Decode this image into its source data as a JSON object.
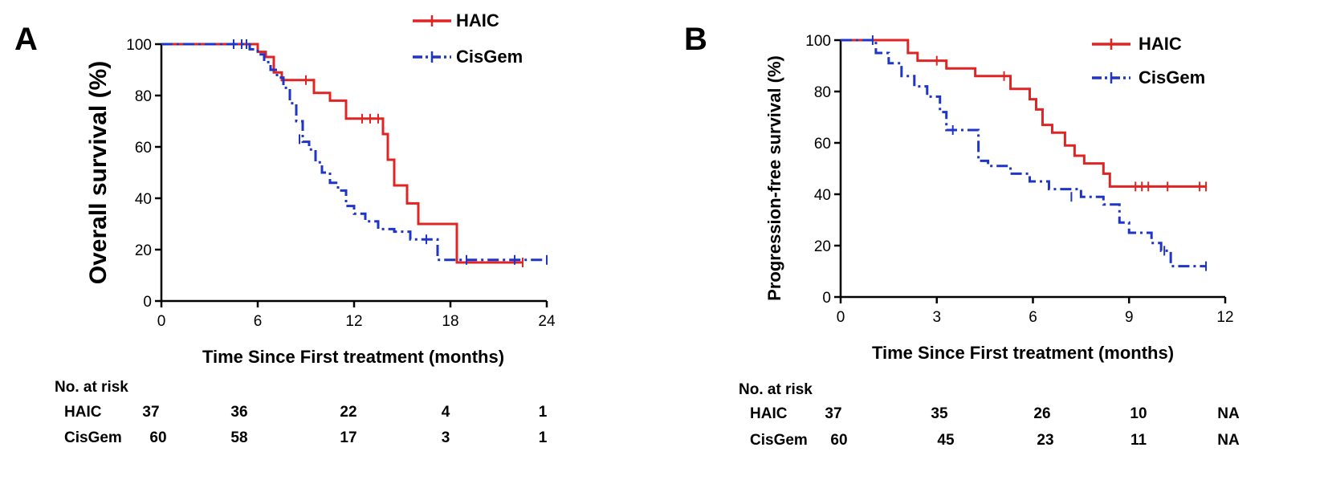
{
  "chart_data": [
    {
      "panel_label": "A",
      "type": "line",
      "subtype": "kaplan-meier",
      "title": "",
      "xlabel": "Time Since First treatment (months)",
      "ylabel": "Overall survival (%)",
      "xlim": [
        0,
        24
      ],
      "ylim": [
        0,
        100
      ],
      "xticks": [
        0,
        6,
        12,
        18,
        24
      ],
      "yticks": [
        0,
        20,
        40,
        60,
        80,
        100
      ],
      "legend_position": "top-right",
      "series": [
        {
          "name": "HAIC",
          "color": "#e02424",
          "line_style": "solid",
          "x": [
            0,
            6,
            6.5,
            7,
            7.5,
            9.5,
            10.5,
            11.5,
            13.8,
            14.1,
            14.5,
            15.3,
            16,
            18.4,
            22.5
          ],
          "y": [
            100,
            97,
            95,
            89,
            86,
            81,
            78,
            71,
            65,
            55,
            45,
            38,
            30,
            15,
            15
          ],
          "censor_x": [
            9,
            12.5,
            13,
            13.5,
            22.5
          ],
          "censor_y": [
            86,
            71,
            71,
            71,
            15
          ]
        },
        {
          "name": "CisGem",
          "color": "#1f35c8",
          "line_style": "dashdot",
          "x": [
            0,
            5.5,
            6,
            6.4,
            6.8,
            7.2,
            7.6,
            8,
            8.4,
            8.8,
            9.2,
            9.6,
            10,
            10.5,
            11,
            11.5,
            12,
            12.7,
            13.5,
            14.5,
            15.5,
            17.2,
            24
          ],
          "y": [
            100,
            98,
            96,
            93,
            90,
            87,
            83,
            77,
            70,
            62,
            59,
            54,
            50,
            46,
            43,
            37,
            34,
            31,
            28,
            27,
            24,
            16,
            16
          ],
          "censor_x": [
            4.5,
            5,
            5.3,
            8.6,
            16.5,
            19,
            22,
            24
          ],
          "censor_y": [
            100,
            100,
            100,
            63,
            24,
            16,
            16,
            16
          ]
        }
      ],
      "risk_table": {
        "title": "No. at risk",
        "rows": [
          {
            "label": "HAIC",
            "values": [
              "37",
              "36",
              "22",
              "4",
              "1"
            ]
          },
          {
            "label": "CisGem",
            "values": [
              "60",
              "58",
              "17",
              "3",
              "1"
            ]
          }
        ]
      }
    },
    {
      "panel_label": "B",
      "type": "line",
      "subtype": "kaplan-meier",
      "title": "",
      "xlabel": "Time Since First treatment (months)",
      "ylabel": "Progression-free survival (%)",
      "xlim": [
        0,
        12
      ],
      "ylim": [
        0,
        100
      ],
      "xticks": [
        0,
        3,
        6,
        9,
        12
      ],
      "yticks": [
        0,
        20,
        40,
        60,
        80,
        100
      ],
      "legend_position": "top-right",
      "series": [
        {
          "name": "HAIC",
          "color": "#e02424",
          "line_style": "solid",
          "x": [
            0,
            2.1,
            2.4,
            3.3,
            4.2,
            5.3,
            5.9,
            6.1,
            6.3,
            6.6,
            7,
            7.3,
            7.6,
            8.2,
            8.4,
            11.4
          ],
          "y": [
            100,
            95,
            92,
            89,
            86,
            81,
            77,
            73,
            67,
            64,
            59,
            55,
            52,
            48,
            43,
            43
          ],
          "censor_x": [
            3,
            5.1,
            9.2,
            9.4,
            9.6,
            10.2,
            11.2,
            11.4
          ],
          "censor_y": [
            92,
            86,
            43,
            43,
            43,
            43,
            43,
            43
          ]
        },
        {
          "name": "CisGem",
          "color": "#1f35c8",
          "line_style": "dashdot",
          "x": [
            0,
            1.1,
            1.5,
            1.9,
            2.3,
            2.7,
            3.1,
            3.3,
            4.3,
            4.6,
            5.3,
            5.9,
            6.5,
            7.5,
            8.2,
            8.7,
            9,
            9.7,
            10,
            10.3,
            11.4
          ],
          "y": [
            100,
            95,
            91,
            86,
            82,
            78,
            72,
            65,
            53,
            51,
            48,
            45,
            42,
            39,
            36,
            29,
            25,
            21,
            18,
            12,
            12
          ],
          "censor_x": [
            1,
            3.5,
            7.2,
            10.1,
            11.4
          ],
          "censor_y": [
            100,
            65,
            39,
            18,
            12
          ]
        }
      ],
      "risk_table": {
        "title": "No. at risk",
        "rows": [
          {
            "label": "HAIC",
            "values": [
              "37",
              "35",
              "26",
              "10",
              "NA"
            ]
          },
          {
            "label": "CisGem",
            "values": [
              "60",
              "45",
              "23",
              "11",
              "NA"
            ]
          }
        ]
      }
    }
  ]
}
